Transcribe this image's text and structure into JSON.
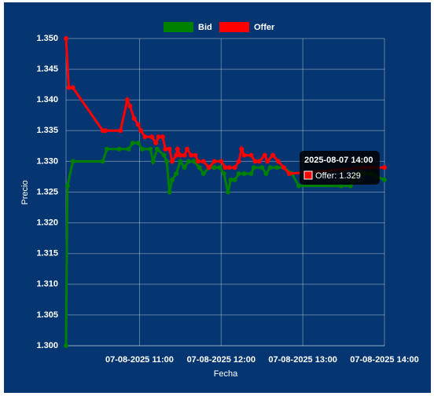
{
  "chart_data": {
    "type": "line",
    "x_label": "Fecha",
    "y_label": "Precio",
    "xlim": [
      "2025-08-07 10:06",
      "2025-08-07 14:00"
    ],
    "xticks": [
      {
        "value": "2025-08-07 11:00",
        "label": "07-08-2025 11:00"
      },
      {
        "value": "2025-08-07 12:00",
        "label": "07-08-2025 12:00"
      },
      {
        "value": "2025-08-07 13:00",
        "label": "07-08-2025 13:00"
      },
      {
        "value": "2025-08-07 14:00",
        "label": "07-08-2025 14:00"
      }
    ],
    "ylim": [
      1.3,
      1.35
    ],
    "yticks": [
      {
        "value": 1.3,
        "label": "1.300"
      },
      1.305,
      {
        "value": 1.31,
        "label": "1.310"
      },
      1.315,
      {
        "value": 1.32,
        "label": "1.320"
      },
      1.325,
      {
        "value": 1.33,
        "label": "1.330"
      },
      1.335,
      {
        "value": 1.34,
        "label": "1.340"
      },
      1.345,
      {
        "value": 1.35,
        "label": "1.350"
      }
    ],
    "grid": true,
    "legend": "top",
    "series": [
      {
        "name": "Bid",
        "color": "#008000",
        "x": [
          "2025-08-07 10:06",
          "2025-08-07 10:07",
          "2025-08-07 10:11",
          "2025-08-07 10:33",
          "2025-08-07 10:36",
          "2025-08-07 10:45",
          "2025-08-07 10:52",
          "2025-08-07 10:55",
          "2025-08-07 10:59",
          "2025-08-07 11:02",
          "2025-08-07 11:08",
          "2025-08-07 11:10",
          "2025-08-07 11:13",
          "2025-08-07 11:18",
          "2025-08-07 11:20",
          "2025-08-07 11:22",
          "2025-08-07 11:24",
          "2025-08-07 11:27",
          "2025-08-07 11:30",
          "2025-08-07 11:33",
          "2025-08-07 11:36",
          "2025-08-07 11:40",
          "2025-08-07 11:44",
          "2025-08-07 11:47",
          "2025-08-07 11:51",
          "2025-08-07 11:55",
          "2025-08-07 11:59",
          "2025-08-07 12:02",
          "2025-08-07 12:05",
          "2025-08-07 12:07",
          "2025-08-07 12:10",
          "2025-08-07 12:13",
          "2025-08-07 12:17",
          "2025-08-07 12:22",
          "2025-08-07 12:24",
          "2025-08-07 12:30",
          "2025-08-07 12:33",
          "2025-08-07 12:36",
          "2025-08-07 12:41",
          "2025-08-07 12:46",
          "2025-08-07 12:52",
          "2025-08-07 12:57",
          "2025-08-07 13:28",
          "2025-08-07 13:35",
          "2025-08-07 13:40",
          "2025-08-07 13:45",
          "2025-08-07 13:50",
          "2025-08-07 14:00"
        ],
        "values": [
          1.3,
          1.326,
          1.33,
          1.33,
          1.332,
          1.332,
          1.332,
          1.333,
          1.333,
          1.332,
          1.332,
          1.33,
          1.332,
          1.331,
          1.33,
          1.325,
          1.327,
          1.328,
          1.33,
          1.329,
          1.33,
          1.33,
          1.329,
          1.328,
          1.329,
          1.329,
          1.329,
          1.328,
          1.325,
          1.327,
          1.327,
          1.328,
          1.328,
          1.328,
          1.329,
          1.329,
          1.328,
          1.329,
          1.329,
          1.329,
          1.328,
          1.326,
          1.326,
          1.326,
          1.328,
          1.328,
          1.328,
          1.327
        ]
      },
      {
        "name": "Offer",
        "color": "#ff0000",
        "x": [
          "2025-08-07 10:06",
          "2025-08-07 10:08",
          "2025-08-07 10:11",
          "2025-08-07 10:33",
          "2025-08-07 10:35",
          "2025-08-07 10:46",
          "2025-08-07 10:51",
          "2025-08-07 10:53",
          "2025-08-07 10:56",
          "2025-08-07 10:59",
          "2025-08-07 11:01",
          "2025-08-07 11:04",
          "2025-08-07 11:09",
          "2025-08-07 11:12",
          "2025-08-07 11:14",
          "2025-08-07 11:17",
          "2025-08-07 11:19",
          "2025-08-07 11:22",
          "2025-08-07 11:24",
          "2025-08-07 11:27",
          "2025-08-07 11:28",
          "2025-08-07 11:30",
          "2025-08-07 11:33",
          "2025-08-07 11:35",
          "2025-08-07 11:38",
          "2025-08-07 11:41",
          "2025-08-07 11:43",
          "2025-08-07 11:47",
          "2025-08-07 11:51",
          "2025-08-07 11:55",
          "2025-08-07 12:00",
          "2025-08-07 12:03",
          "2025-08-07 12:06",
          "2025-08-07 12:10",
          "2025-08-07 12:13",
          "2025-08-07 12:15",
          "2025-08-07 12:17",
          "2025-08-07 12:22",
          "2025-08-07 12:25",
          "2025-08-07 12:28",
          "2025-08-07 12:32",
          "2025-08-07 12:34",
          "2025-08-07 12:38",
          "2025-08-07 12:42",
          "2025-08-07 12:46",
          "2025-08-07 12:50",
          "2025-08-07 13:45",
          "2025-08-07 13:50",
          "2025-08-07 14:00"
        ],
        "values": [
          1.35,
          1.342,
          1.342,
          1.335,
          1.335,
          1.335,
          1.34,
          1.339,
          1.337,
          1.336,
          1.335,
          1.334,
          1.334,
          1.333,
          1.334,
          1.334,
          1.332,
          1.332,
          1.33,
          1.331,
          1.332,
          1.331,
          1.331,
          1.332,
          1.331,
          1.331,
          1.33,
          1.33,
          1.329,
          1.33,
          1.33,
          1.329,
          1.329,
          1.329,
          1.33,
          1.332,
          1.331,
          1.331,
          1.33,
          1.33,
          1.331,
          1.33,
          1.331,
          1.33,
          1.329,
          1.328,
          1.329,
          1.329,
          1.329
        ]
      }
    ],
    "tooltip": {
      "title": "2025-08-07 14:00",
      "text": "Offer: 1.329"
    }
  }
}
